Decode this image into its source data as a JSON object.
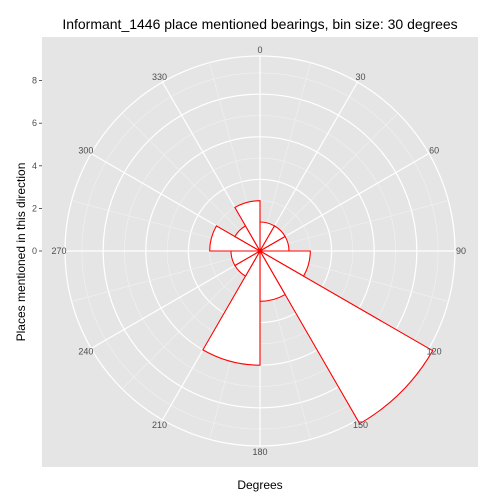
{
  "chart_data": {
    "type": "polar-histogram",
    "title": "Informant_1446 place mentioned bearings, bin size: 30 degrees",
    "xlabel": "Degrees",
    "ylabel": "Places mentioned in this direction",
    "bin_size": 30,
    "angle_ticks": [
      "0",
      "30",
      "60",
      "90",
      "120",
      "150",
      "180",
      "210",
      "240",
      "270",
      "300",
      "330"
    ],
    "radial_ticks": [
      "0",
      "2",
      "4",
      "6",
      "8"
    ],
    "radial_range": [
      0,
      8
    ],
    "grid": true,
    "bar_fill": "#ffffff",
    "bar_stroke": "#ff0000",
    "panel_color": "#e5e5e5",
    "grid_color": "#ffffff",
    "bins": [
      {
        "start": 0,
        "end": 30,
        "value": 0
      },
      {
        "start": 30,
        "end": 60,
        "value": 0
      },
      {
        "start": 60,
        "end": 90,
        "value": 0
      },
      {
        "start": 90,
        "end": 120,
        "value": 1
      },
      {
        "start": 120,
        "end": 150,
        "value": 8
      },
      {
        "start": 150,
        "end": 180,
        "value": 1
      },
      {
        "start": 180,
        "end": 210,
        "value": 4
      },
      {
        "start": 210,
        "end": 240,
        "value": 0
      },
      {
        "start": 240,
        "end": 270,
        "value": 0
      },
      {
        "start": 270,
        "end": 300,
        "value": 1
      },
      {
        "start": 300,
        "end": 330,
        "value": 0
      },
      {
        "start": 330,
        "end": 360,
        "value": 1
      }
    ]
  }
}
